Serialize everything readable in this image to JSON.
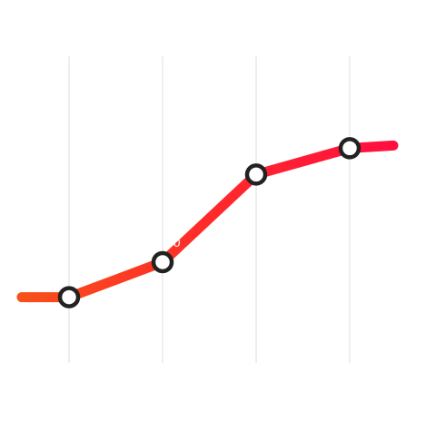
{
  "chart_data": {
    "type": "line",
    "x": [
      1,
      2,
      3,
      4
    ],
    "values": [
      0.75,
      1.15,
      2.15,
      2.45
    ],
    "line_extends_before_first_point": true,
    "line_extends_after_last_point": true,
    "ylim": [
      0,
      3.5
    ],
    "grid": {
      "vertical": true,
      "horizontal": false
    },
    "data_labels": [
      {
        "point_index": 1,
        "text": "00"
      }
    ],
    "colors": {
      "gradient_start": "#F7501A",
      "gradient_mid": "#FF2A2A",
      "gradient_end": "#FF0F3F",
      "marker_fill": "#FFFFFF",
      "marker_stroke": "#222222",
      "grid": "#E8E8E8",
      "data_label": "#FFFFFF"
    }
  }
}
